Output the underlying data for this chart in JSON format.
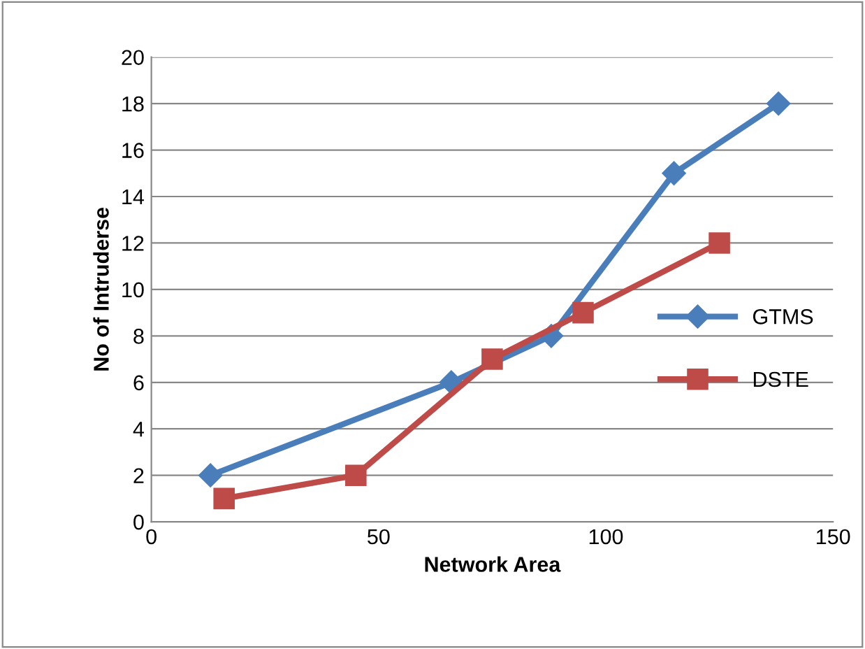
{
  "chart_data": {
    "type": "line",
    "xlabel": "Network Area",
    "ylabel": "No of Intruderse",
    "xlim": [
      0,
      150
    ],
    "xticks": [
      0,
      50,
      100,
      150
    ],
    "ylim": [
      0,
      20
    ],
    "yticks": [
      0,
      2,
      4,
      6,
      8,
      10,
      12,
      14,
      16,
      18,
      20
    ],
    "grid": "y",
    "legend": "right",
    "series": [
      {
        "name": "GTMS",
        "color": "#4a7ebb",
        "marker": "diamond",
        "x": [
          13,
          66,
          88,
          115,
          138
        ],
        "values": [
          2,
          6,
          8,
          15,
          18
        ]
      },
      {
        "name": "DSTE",
        "color": "#be4b48",
        "marker": "square",
        "x": [
          16,
          45,
          75,
          95,
          125
        ],
        "values": [
          1,
          2,
          7,
          9,
          12
        ]
      }
    ]
  }
}
